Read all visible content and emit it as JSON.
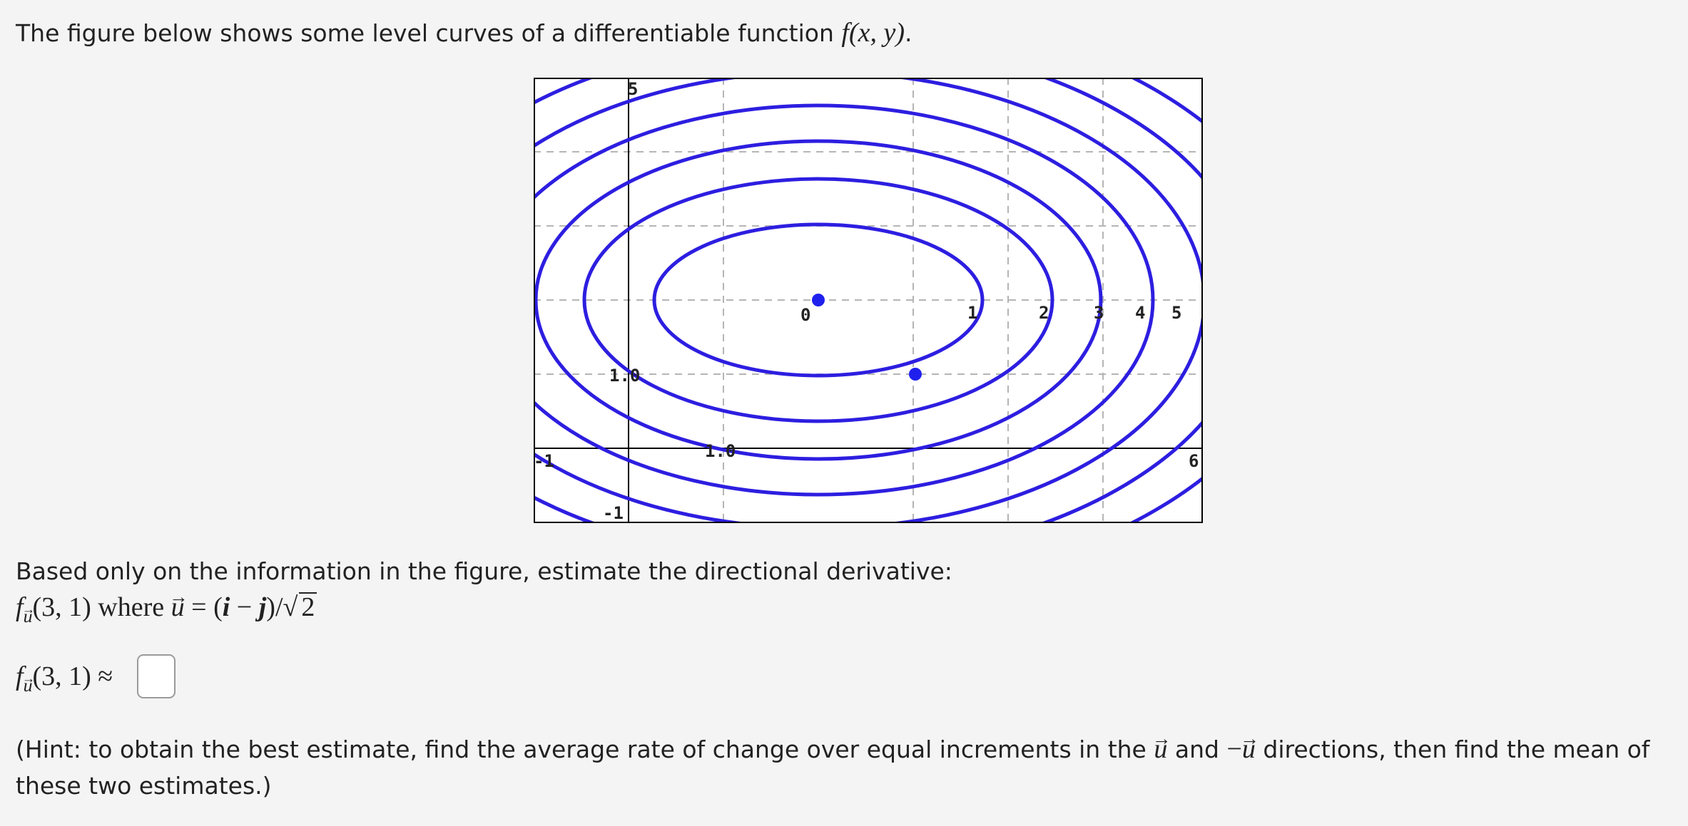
{
  "intro": {
    "text": "The figure below shows some level curves of a differentiable function",
    "func": "f(x, y)",
    "period": "."
  },
  "figure": {
    "x_tick_labels": [
      "-1",
      "1.0",
      "6"
    ],
    "y_tick_labels": [
      "5",
      "1.0",
      "-1"
    ],
    "level_labels": [
      "0",
      "1",
      "2",
      "3",
      "4",
      "5"
    ],
    "colors": {
      "curve": "#2d1ee0",
      "axis": "#000000",
      "grid": "#b5b5b5",
      "point": "#2020ee"
    }
  },
  "question": {
    "lead": "Based only on the information in the figure, estimate the directional derivative:",
    "f": "f",
    "sub_u": "u",
    "args": "(3, 1)",
    "where": "where",
    "u": "u",
    "eq": "=",
    "paren_open": "(",
    "i": "i",
    "minus": "−",
    "j": "j",
    "paren_close": ")",
    "slash": "/",
    "sqrt_sign": "√",
    "sqrt_arg": "2"
  },
  "answer": {
    "f": "f",
    "sub_u": "u",
    "args": "(3, 1)",
    "approx": "≈",
    "value": ""
  },
  "hint": {
    "text1": "(Hint: to obtain the best estimate, find the average rate of change over equal increments in the",
    "u1": "u",
    "and": "and",
    "neg": "−",
    "u2": "u",
    "text2": "directions, then find the mean of these two estimates.)"
  }
}
